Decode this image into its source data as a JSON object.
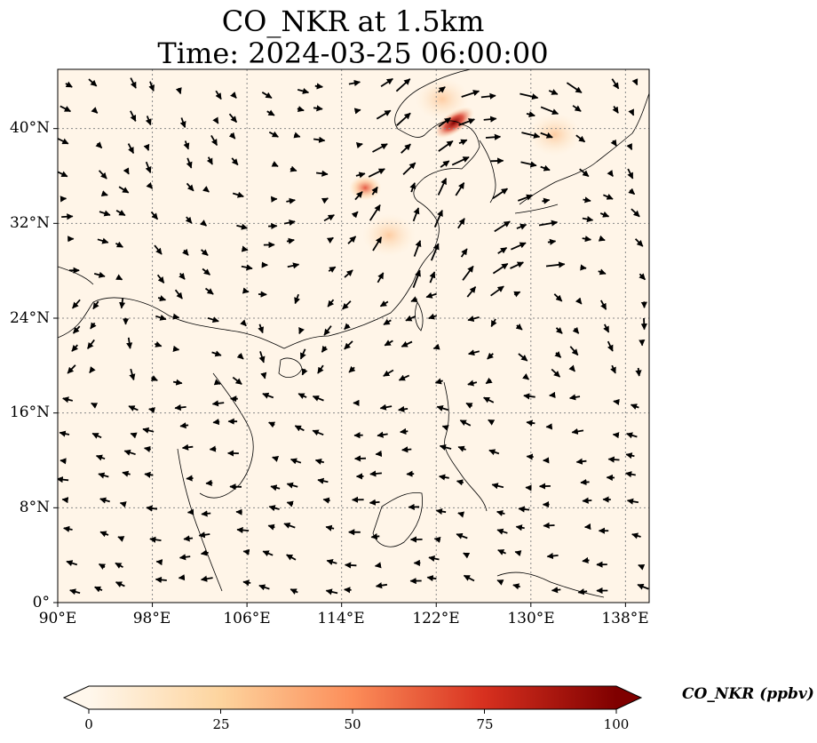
{
  "title_line1": "CO_NKR at 1.5km",
  "title_line2": "Time: 2024-03-25 06:00:00",
  "map": {
    "lon_range": [
      90,
      140
    ],
    "lat_range": [
      0,
      45
    ],
    "lon_ticks": [
      "90°E",
      "98°E",
      "106°E",
      "114°E",
      "122°E",
      "130°E",
      "138°E"
    ],
    "lat_ticks": [
      "0°",
      "8°N",
      "16°N",
      "24°N",
      "32°N",
      "40°N"
    ],
    "gridlines": "dotted",
    "colormap": "OrRd",
    "background_color": "#fff5e8",
    "plumes": [
      {
        "lon": 123.5,
        "lat": 40.5,
        "level": "high"
      },
      {
        "lon": 122.5,
        "lat": 42.5,
        "level": "low"
      },
      {
        "lon": 132.0,
        "lat": 39.5,
        "level": "low"
      },
      {
        "lon": 116.0,
        "lat": 35.0,
        "level": "medium"
      },
      {
        "lon": 118.0,
        "lat": 31.0,
        "level": "low"
      }
    ]
  },
  "colorbar": {
    "label": "CO_NKR (ppbv)",
    "min": 0,
    "max": 100,
    "ticks": [
      "0",
      "25",
      "50",
      "75",
      "100"
    ],
    "extend": "both",
    "colors": [
      "#fff7ec",
      "#fdd49e",
      "#fc8d59",
      "#d7301f",
      "#7f0000"
    ]
  }
}
